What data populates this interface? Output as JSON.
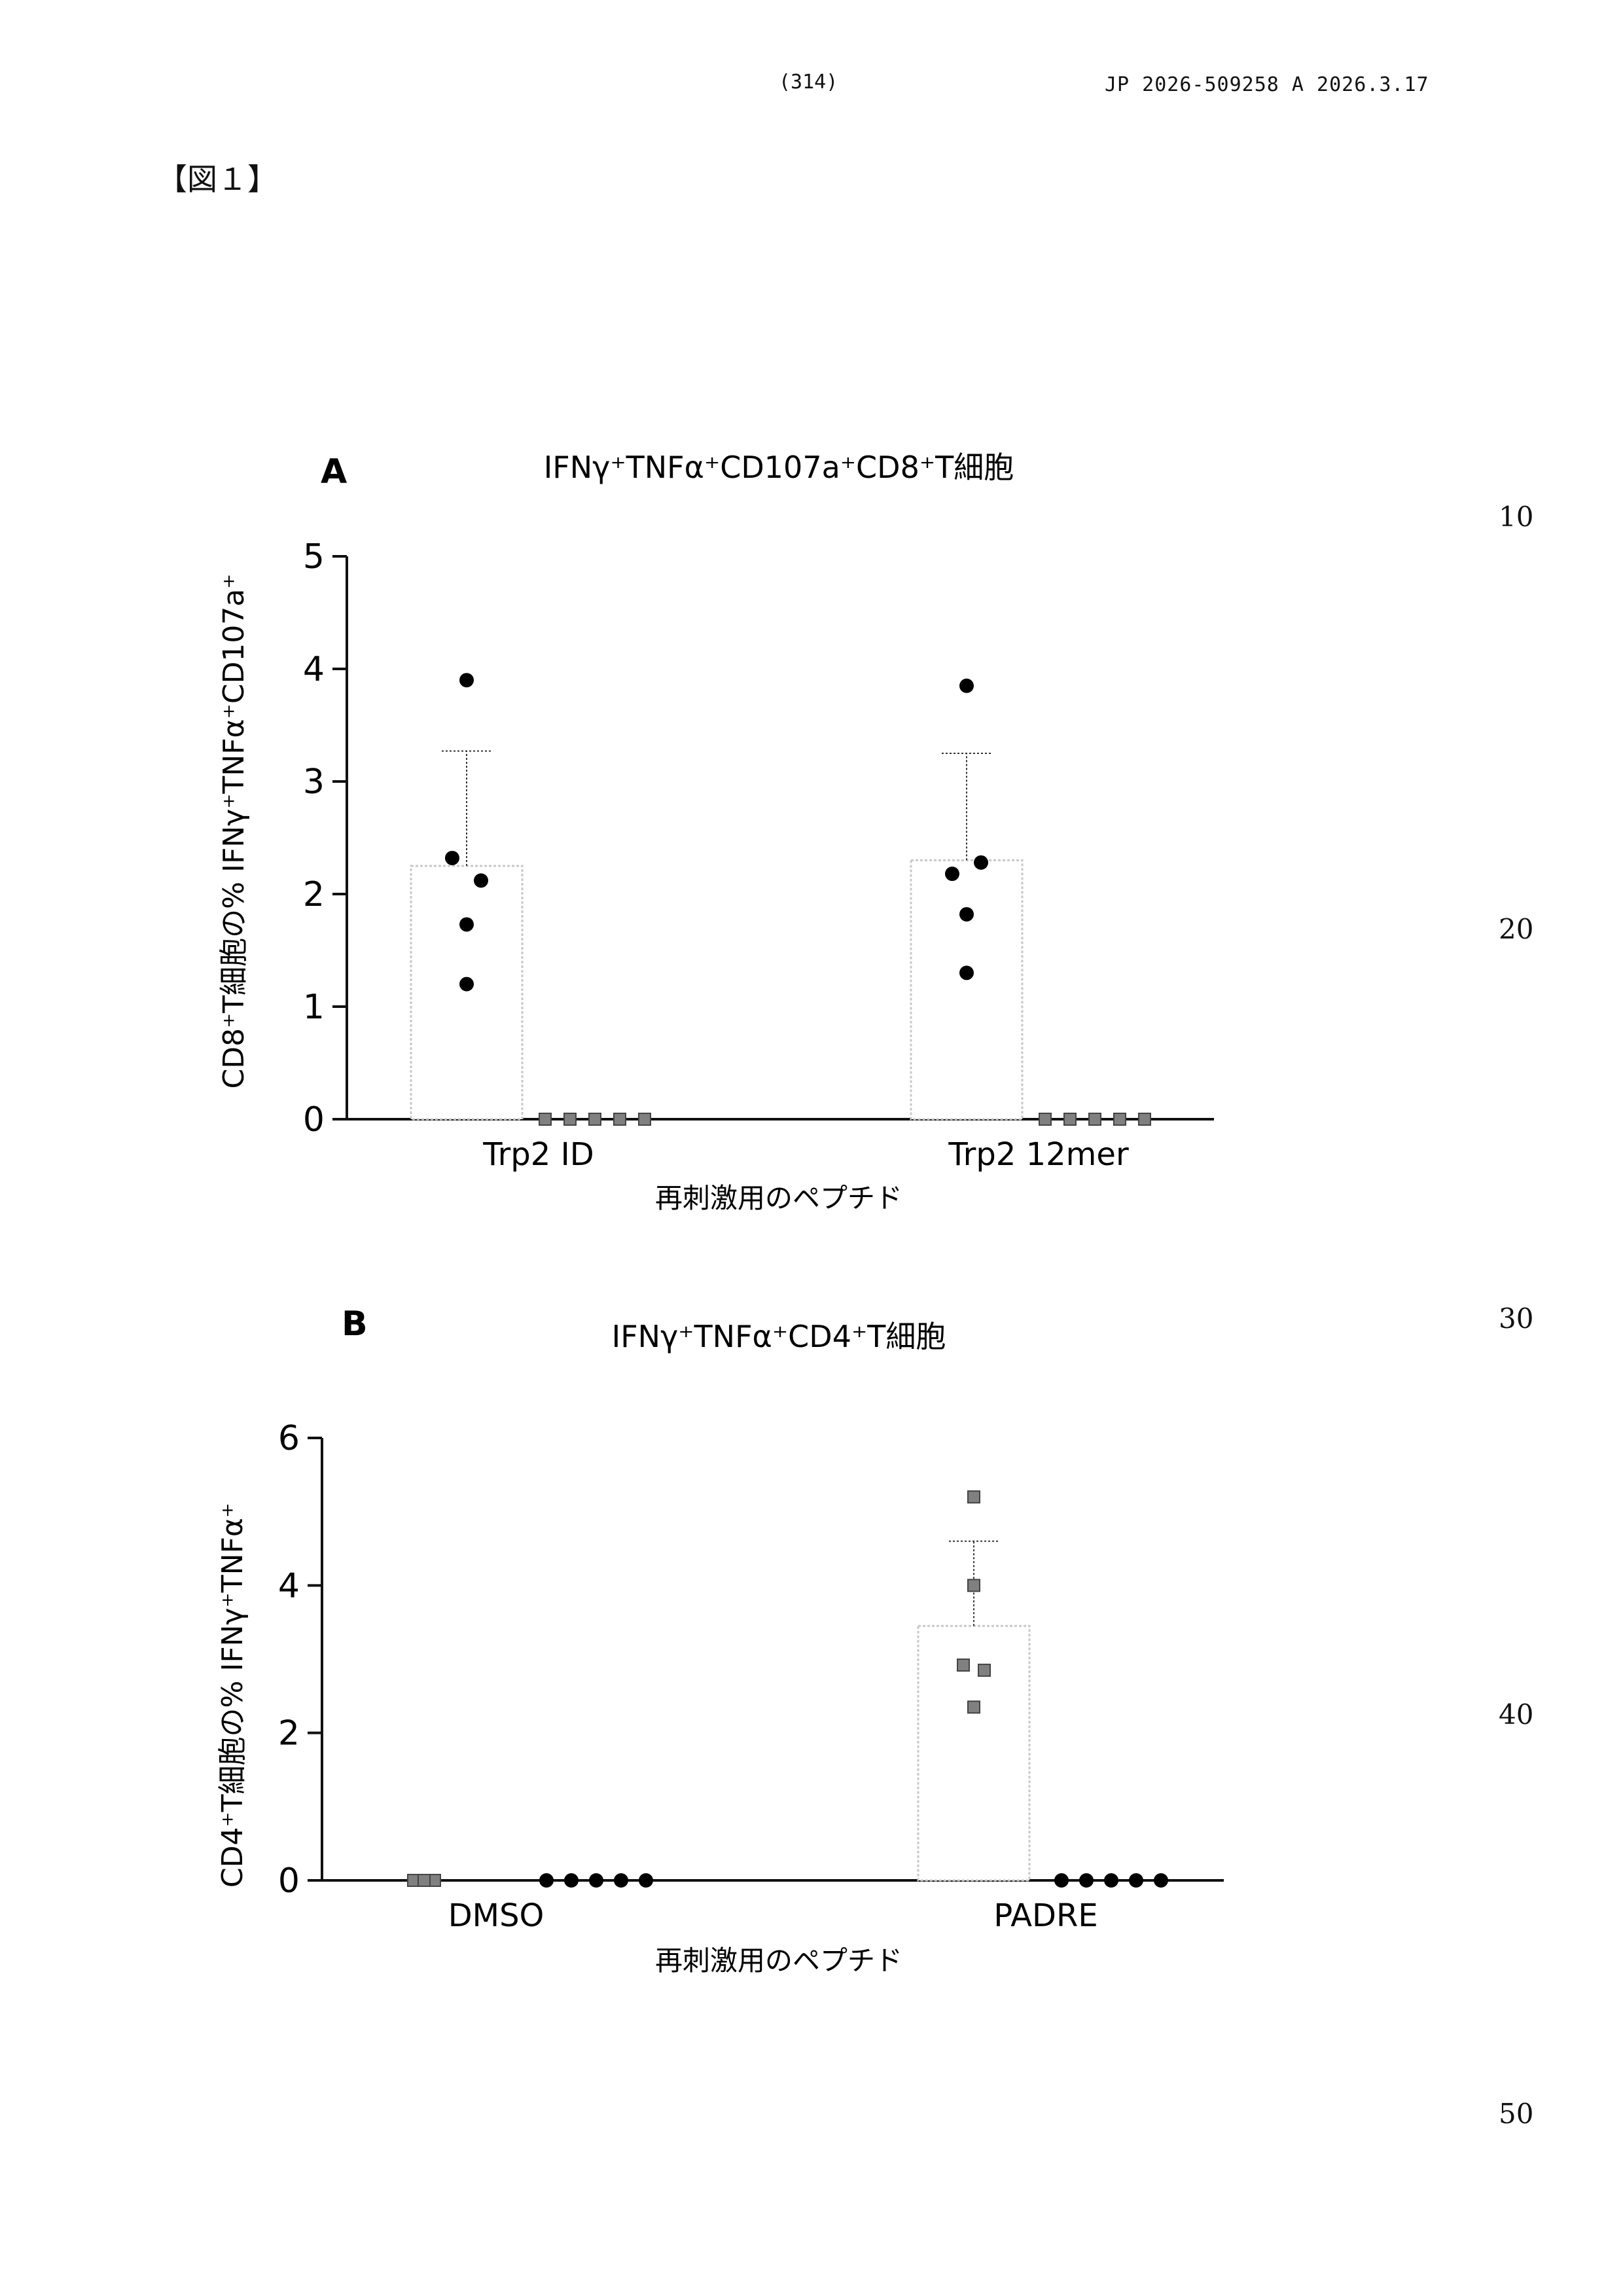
{
  "header": {
    "page_number": "(314)",
    "doc_id": "JP  2026-509258  A  2026.3.17"
  },
  "figure_label": "【図１】",
  "line_numbers": [
    "10",
    "20",
    "30",
    "40",
    "50"
  ],
  "chart_data": [
    {
      "type": "bar",
      "panel_letter": "A",
      "title": "IFNγ⁺TNFα⁺CD107a⁺CD8⁺T細胞",
      "ylabel": "CD8⁺T細胞の%  IFNγ⁺TNFα⁺CD107a⁺",
      "xlabel": "再刺激用のペプチド",
      "ylim": [
        0,
        5
      ],
      "yticks": [
        0,
        1,
        2,
        3,
        4,
        5
      ],
      "categories": [
        "Trp2 ID",
        "Trp2 12mer"
      ],
      "series": [
        {
          "marker": "circle",
          "color": "#000000",
          "bar_means": [
            2.25,
            2.3
          ],
          "error_upper": [
            3.27,
            3.25
          ],
          "points": [
            [
              3.9,
              2.32,
              2.12,
              1.73,
              1.2
            ],
            [
              3.85,
              2.18,
              2.28,
              1.82,
              1.3
            ]
          ]
        },
        {
          "marker": "square",
          "color": "#808080",
          "bar_means": [
            0,
            0
          ],
          "points": [
            [
              0,
              0,
              0,
              0,
              0
            ],
            [
              0,
              0,
              0,
              0,
              0
            ]
          ]
        }
      ]
    },
    {
      "type": "bar",
      "panel_letter": "B",
      "title": "IFNγ⁺TNFα⁺CD4⁺T細胞",
      "ylabel": "CD4⁺T細胞の%  IFNγ⁺TNFα⁺",
      "xlabel": "再刺激用のペプチド",
      "ylim": [
        0,
        6
      ],
      "yticks": [
        0,
        2,
        4,
        6
      ],
      "categories": [
        "DMSO",
        "PADRE"
      ],
      "series": [
        {
          "marker": "square",
          "color": "#808080",
          "bar_means": [
            0,
            3.45
          ],
          "error_upper": [
            null,
            4.6
          ],
          "points": [
            [
              0,
              0,
              0,
              0,
              0
            ],
            [
              5.2,
              4.0,
              2.92,
              2.85,
              2.35
            ]
          ]
        },
        {
          "marker": "circle",
          "color": "#000000",
          "bar_means": [
            0,
            0
          ],
          "points": [
            [
              0,
              0,
              0,
              0,
              0
            ],
            [
              0,
              0,
              0,
              0,
              0
            ]
          ]
        }
      ]
    }
  ]
}
